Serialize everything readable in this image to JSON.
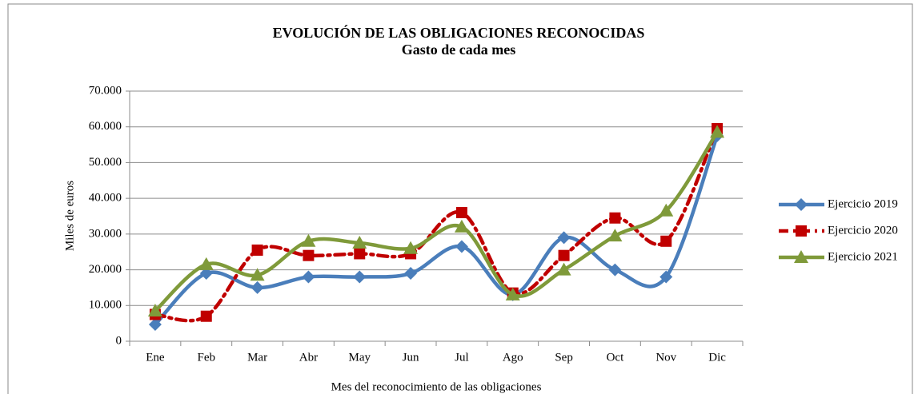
{
  "chart_data": {
    "type": "line",
    "title": "EVOLUCIÓN DE LAS OBLIGACIONES RECONOCIDAS",
    "subtitle": "Gasto de cada mes",
    "x_label": "Mes del reconocimiento de las obligaciones",
    "y_label": "Miles de euros",
    "categories": [
      "Ene",
      "Feb",
      "Mar",
      "Abr",
      "May",
      "Jun",
      "Jul",
      "Ago",
      "Sep",
      "Oct",
      "Nov",
      "Dic"
    ],
    "series": [
      {
        "name": "Ejercicio 2019",
        "color": "#4a7ebb",
        "marker": "diamond",
        "dash": "solid",
        "values": [
          4700,
          19000,
          15000,
          18000,
          18000,
          19000,
          26500,
          13000,
          29000,
          20000,
          18000,
          57500
        ]
      },
      {
        "name": "Ejercicio 2020",
        "color": "#c00000",
        "marker": "square",
        "dash": "dashdot",
        "values": [
          7500,
          7000,
          25500,
          24000,
          24500,
          24500,
          36000,
          13500,
          24000,
          34500,
          28000,
          59500
        ]
      },
      {
        "name": "Ejercicio 2021",
        "color": "#7f9a3a",
        "marker": "triangle",
        "dash": "solid",
        "values": [
          8500,
          21500,
          18500,
          28000,
          27500,
          26000,
          32000,
          13000,
          20000,
          29500,
          36500,
          58500
        ]
      }
    ],
    "ylim": [
      0,
      70000
    ],
    "yticks": [
      0,
      {
        "value": 10000,
        "label": "10.000"
      },
      {
        "value": 20000,
        "label": "20.000"
      },
      {
        "value": 30000,
        "label": "30.000"
      },
      {
        "value": 40000,
        "label": "40.000"
      },
      {
        "value": 50000,
        "label": "50.000"
      },
      {
        "value": 60000,
        "label": "60.000"
      },
      {
        "value": 70000,
        "label": "70.000"
      }
    ],
    "grid": true,
    "smooth": true,
    "legend": "right"
  }
}
